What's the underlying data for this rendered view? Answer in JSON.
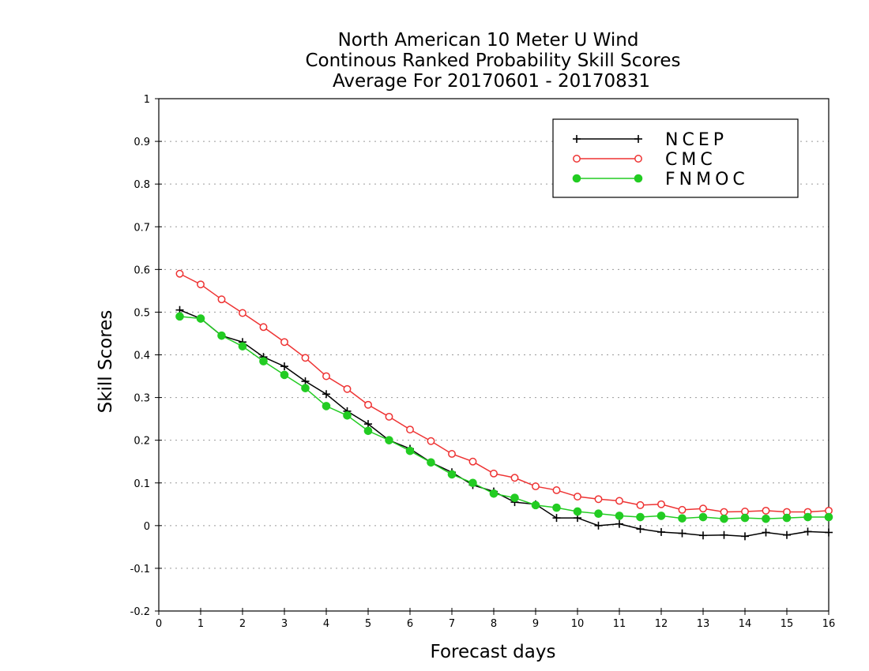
{
  "chart_data": {
    "type": "line",
    "title": [
      "North American 10 Meter U Wind",
      "Continous Ranked Probability Skill Scores",
      "Average For 20170601 - 20170831"
    ],
    "xlabel": "Forecast days",
    "ylabel": "Skill Scores",
    "xlim": [
      0,
      16
    ],
    "ylim": [
      -0.2,
      1
    ],
    "x_ticks": [
      "0",
      "1",
      "2",
      "3",
      "4",
      "5",
      "6",
      "7",
      "8",
      "9",
      "10",
      "11",
      "12",
      "13",
      "14",
      "15",
      "16"
    ],
    "y_ticks": [
      "-0.2",
      "-0.1",
      "0",
      "0.1",
      "0.2",
      "0.3",
      "0.4",
      "0.5",
      "0.6",
      "0.7",
      "0.8",
      "0.9",
      "1"
    ],
    "grid": "horizontal dotted",
    "legend_position": "top-right",
    "x": [
      0.5,
      1,
      1.5,
      2,
      2.5,
      3,
      3.5,
      4,
      4.5,
      5,
      5.5,
      6,
      6.5,
      7,
      7.5,
      8,
      8.5,
      9,
      9.5,
      10,
      10.5,
      11,
      11.5,
      12,
      12.5,
      13,
      13.5,
      14,
      14.5,
      15,
      15.5,
      16
    ],
    "series": [
      {
        "name": "NCEP",
        "color": "#000000",
        "marker": "plus",
        "values": [
          0.505,
          0.485,
          0.445,
          0.43,
          0.395,
          0.373,
          0.338,
          0.308,
          0.268,
          0.238,
          0.2,
          0.18,
          0.148,
          0.125,
          0.095,
          0.08,
          0.055,
          0.05,
          0.018,
          0.018,
          0.0,
          0.004,
          -0.008,
          -0.015,
          -0.018,
          -0.023,
          -0.022,
          -0.025,
          -0.016,
          -0.022,
          -0.014,
          -0.016
        ]
      },
      {
        "name": "CMC",
        "color": "#ee3333",
        "marker": "open-circle",
        "values": [
          0.59,
          0.565,
          0.53,
          0.498,
          0.465,
          0.43,
          0.393,
          0.35,
          0.32,
          0.283,
          0.255,
          0.225,
          0.198,
          0.168,
          0.15,
          0.122,
          0.112,
          0.092,
          0.083,
          0.068,
          0.062,
          0.058,
          0.048,
          0.05,
          0.037,
          0.04,
          0.032,
          0.033,
          0.035,
          0.032,
          0.032,
          0.035
        ]
      },
      {
        "name": "FNMOC",
        "color": "#22cc22",
        "marker": "filled-circle",
        "values": [
          0.49,
          0.485,
          0.445,
          0.42,
          0.385,
          0.353,
          0.322,
          0.28,
          0.258,
          0.222,
          0.2,
          0.175,
          0.148,
          0.12,
          0.1,
          0.075,
          0.065,
          0.048,
          0.042,
          0.033,
          0.028,
          0.023,
          0.02,
          0.023,
          0.017,
          0.02,
          0.016,
          0.018,
          0.016,
          0.018,
          0.02,
          0.02
        ]
      }
    ]
  }
}
